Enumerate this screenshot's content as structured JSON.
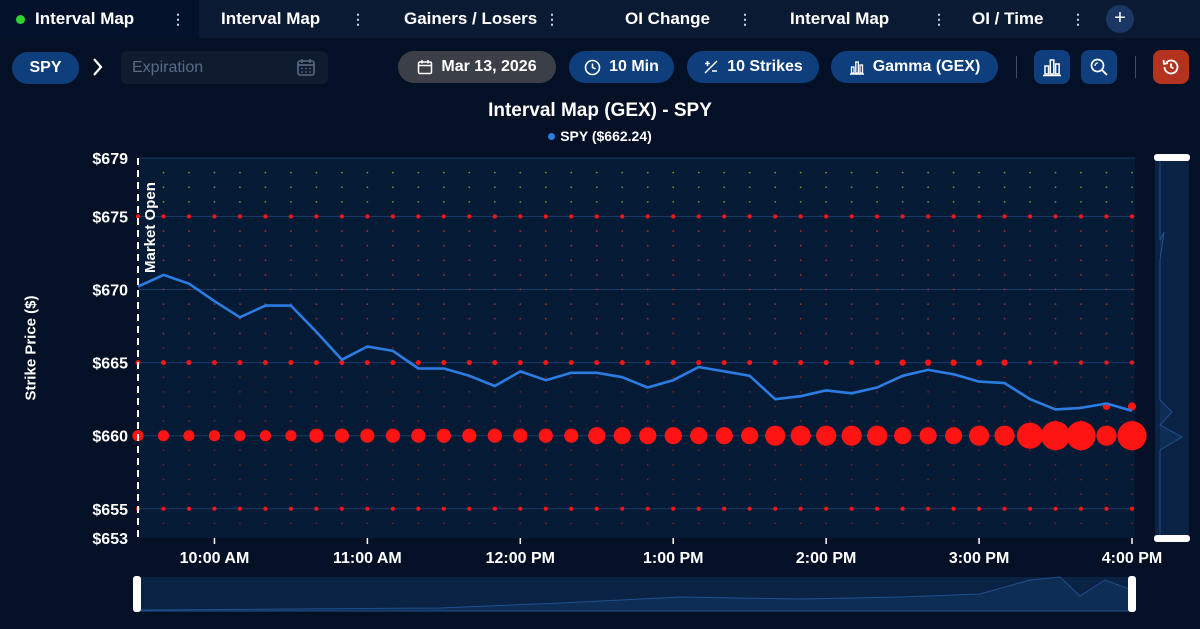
{
  "tabs": [
    {
      "label": "Interval Map",
      "active": true
    },
    {
      "label": "Interval Map",
      "active": false
    },
    {
      "label": "Gainers / Losers",
      "active": false
    },
    {
      "label": "OI Change",
      "active": false
    },
    {
      "label": "Interval Map",
      "active": false
    },
    {
      "label": "OI / Time",
      "active": false
    }
  ],
  "toolbar": {
    "ticker": "SPY",
    "expiration_placeholder": "Expiration",
    "date": "Mar 13, 2026",
    "interval": "10 Min",
    "strikes": "10 Strikes",
    "metric": "Gamma (GEX)"
  },
  "icons": [
    "calendar-icon",
    "clock-icon",
    "plus-minus-icon",
    "bar-chart-icon",
    "zoom-icon",
    "history-icon",
    "plus-icon",
    "kebab-icon",
    "chevron-right-icon"
  ],
  "colors": {
    "accent": "#0e3e7b",
    "line": "#2a7de1",
    "negative": "#ff1a1a",
    "positive": "#9acd32",
    "reset": "#b3331f"
  },
  "chart_data": {
    "type": "scatter",
    "title": "Interval Map (GEX) - SPY",
    "legend": [
      "SPY ($662.24)"
    ],
    "ylabel": "Strike Price ($)",
    "ylim": [
      653,
      679
    ],
    "yticks": [
      "$679",
      "$675",
      "$670",
      "$665",
      "$660",
      "$655",
      "$653"
    ],
    "xticks": [
      "10:00 AM",
      "11:00 AM",
      "12:00 PM",
      "1:00 PM",
      "2:00 PM",
      "3:00 PM",
      "4:00 PM"
    ],
    "annotations": [
      "Market Open"
    ],
    "price_series": {
      "name": "SPY",
      "times": [
        "9:30",
        "9:40",
        "9:50",
        "10:00",
        "10:10",
        "10:20",
        "10:30",
        "10:40",
        "10:50",
        "11:00",
        "11:10",
        "11:20",
        "11:30",
        "11:40",
        "11:50",
        "12:00",
        "12:10",
        "12:20",
        "12:30",
        "12:40",
        "12:50",
        "13:00",
        "13:10",
        "13:20",
        "13:30",
        "13:40",
        "13:50",
        "14:00",
        "14:10",
        "14:20",
        "14:30",
        "14:40",
        "14:50",
        "15:00",
        "15:10",
        "15:20",
        "15:30",
        "15:40",
        "15:50",
        "16:00"
      ],
      "prices": [
        670.2,
        671.0,
        670.4,
        669.2,
        668.1,
        668.9,
        668.9,
        667.1,
        665.2,
        666.1,
        665.8,
        664.6,
        664.6,
        664.1,
        663.4,
        664.4,
        663.8,
        664.3,
        664.3,
        664.0,
        663.3,
        663.8,
        664.7,
        664.4,
        664.1,
        662.5,
        662.7,
        663.1,
        662.9,
        663.3,
        664.1,
        664.5,
        664.2,
        663.7,
        663.6,
        662.5,
        661.8,
        661.9,
        662.2,
        661.7
      ]
    },
    "gex_bubbles": [
      {
        "strike": 660,
        "sign": "negative",
        "size_by_time": [
          1,
          1,
          1,
          1,
          1,
          1,
          1,
          1.5,
          1.5,
          1.5,
          1.5,
          1.5,
          1.5,
          1.5,
          1.5,
          1.5,
          1.5,
          1.5,
          2,
          2,
          2,
          2,
          2,
          2,
          2,
          2.5,
          2.5,
          2.5,
          2.5,
          2.5,
          2,
          2,
          2,
          2.5,
          2.5,
          3.5,
          4,
          4,
          2.5,
          4
        ]
      },
      {
        "strike": 665,
        "sign": "negative",
        "size_by_time": [
          0.5,
          0.5,
          0.5,
          0.5,
          0.5,
          0.5,
          0.5,
          0.5,
          0.5,
          0.5,
          0.5,
          0.5,
          0.5,
          0.5,
          0.5,
          0.5,
          0.5,
          0.5,
          0.5,
          0.5,
          0.5,
          0.5,
          0.5,
          0.5,
          0.5,
          0.5,
          0.5,
          0.5,
          0.5,
          0.5,
          0.8,
          0.8,
          0.8,
          0.8,
          0.8,
          0,
          0,
          0,
          0,
          0
        ]
      },
      {
        "strike": 662,
        "sign": "negative",
        "size_by_time": [
          0,
          0,
          0,
          0,
          0,
          0,
          0,
          0,
          0,
          0,
          0,
          0,
          0,
          0,
          0,
          0,
          0,
          0,
          0,
          0,
          0,
          0,
          0,
          0,
          0,
          0,
          0,
          0,
          0,
          0,
          0,
          0,
          0,
          0,
          0,
          0,
          0,
          0,
          1,
          1.2
        ]
      },
      {
        "strike": 675,
        "sign": "negative",
        "size_by_time": [
          0.3,
          0.3,
          0.3,
          0.3,
          0.3,
          0.3,
          0.3,
          0.3,
          0.3,
          0.3,
          0.3,
          0.3,
          0.3,
          0.3,
          0.3,
          0.3,
          0.3,
          0.3,
          0.3,
          0.3,
          0.3,
          0.3,
          0.3,
          0.3,
          0.3,
          0.3,
          0.3,
          0.3,
          0.3,
          0.3,
          0.3,
          0.3,
          0.3,
          0.3,
          0.3,
          0.3,
          0.3,
          0.3,
          0.3,
          0.3
        ]
      },
      {
        "strike": 655,
        "sign": "negative",
        "size_by_time": [
          0.3,
          0.3,
          0.3,
          0.3,
          0.3,
          0.3,
          0.3,
          0.3,
          0.3,
          0.3,
          0.3,
          0.3,
          0.3,
          0.3,
          0.3,
          0.3,
          0.3,
          0.3,
          0.3,
          0.3,
          0.3,
          0.3,
          0.3,
          0.3,
          0.3,
          0.3,
          0.3,
          0.3,
          0.3,
          0.3,
          0.3,
          0.3,
          0.3,
          0.3,
          0.3,
          0.3,
          0.3,
          0.3,
          0.3,
          0.3
        ]
      }
    ]
  }
}
